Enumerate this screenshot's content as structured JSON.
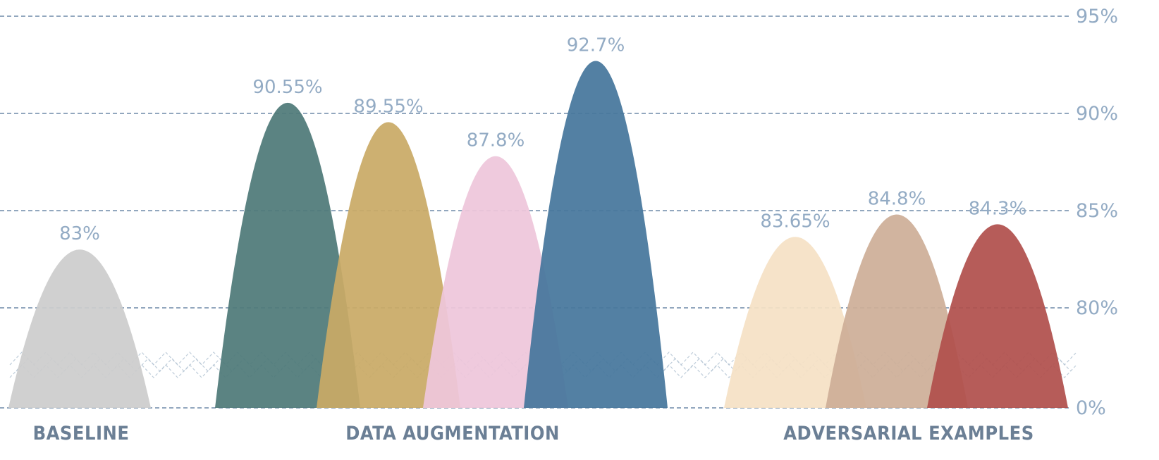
{
  "chart_data": {
    "type": "area",
    "axis_break": true,
    "grid": true,
    "y_ticks": [
      {
        "label": "95%",
        "value": 95
      },
      {
        "label": "90%",
        "value": 90
      },
      {
        "label": "85%",
        "value": 85
      },
      {
        "label": "80%",
        "value": 80
      },
      {
        "label": "0%",
        "value": 0
      }
    ],
    "groups": [
      {
        "name": "BASELINE",
        "series": [
          {
            "label": "83%",
            "value": 83,
            "color": "#cccccc"
          }
        ]
      },
      {
        "name": "DATA AUGMENTATION",
        "series": [
          {
            "label": "90.55%",
            "value": 90.55,
            "color": "#4f7a78"
          },
          {
            "label": "89.55%",
            "value": 89.55,
            "color": "#c9aa66"
          },
          {
            "label": "87.8%",
            "value": 87.8,
            "color": "#eec6da"
          },
          {
            "label": "92.7%",
            "value": 92.7,
            "color": "#46769c"
          }
        ]
      },
      {
        "name": "ADVERSARIAL EXAMPLES",
        "series": [
          {
            "label": "83.65%",
            "value": 83.65,
            "color": "#f5e1c5"
          },
          {
            "label": "84.8%",
            "value": 84.8,
            "color": "#cdae98"
          },
          {
            "label": "84.3%",
            "value": 84.3,
            "color": "#b0504c"
          }
        ]
      }
    ]
  }
}
